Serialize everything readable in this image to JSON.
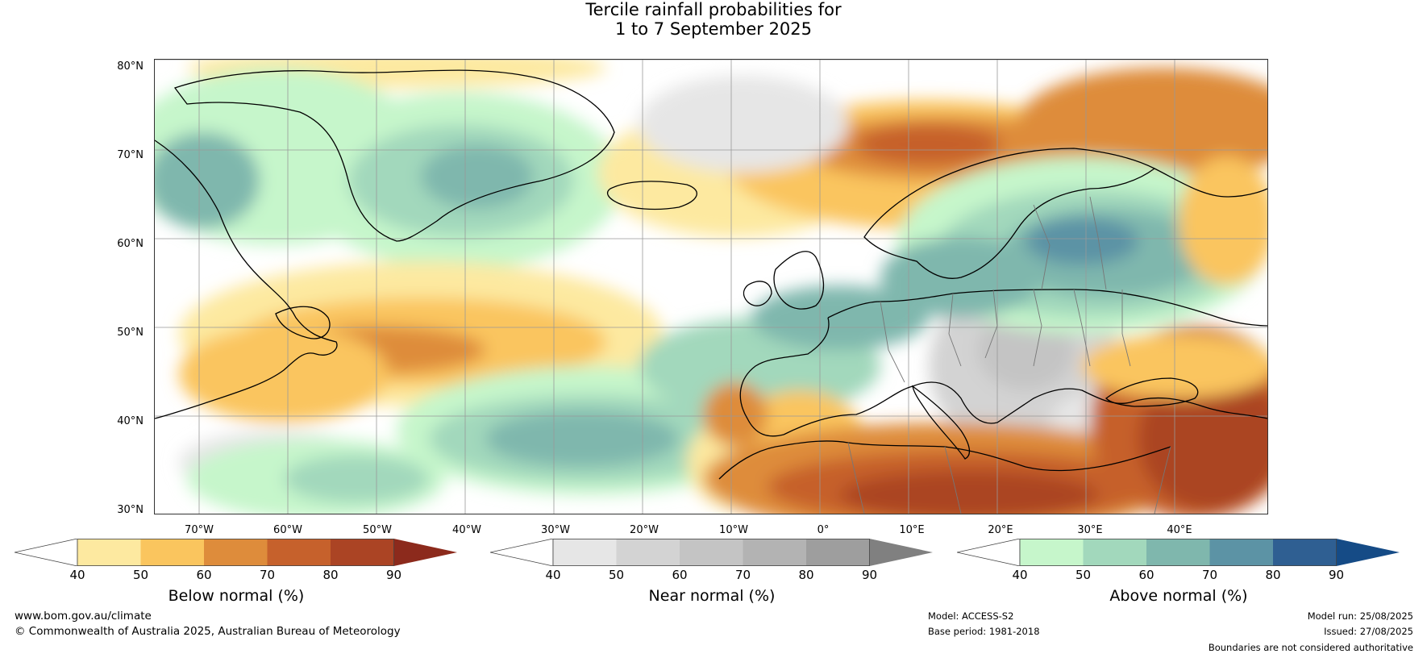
{
  "title": {
    "line1": "Tercile rainfall probabilities for",
    "line2": "1 to 7 September 2025"
  },
  "map": {
    "lat_labels": [
      "80°N",
      "70°N",
      "60°N",
      "50°N",
      "40°N",
      "30°N"
    ],
    "lon_labels": [
      "70°W",
      "60°W",
      "50°W",
      "40°W",
      "30°W",
      "20°W",
      "10°W",
      "0°",
      "10°E",
      "20°E",
      "30°E",
      "40°E"
    ]
  },
  "colorbars": [
    {
      "label": "Below normal (%)",
      "ticks": [
        "40",
        "50",
        "60",
        "70",
        "80",
        "90"
      ],
      "colors": [
        "#ffffff",
        "#fde9a0",
        "#fac55e",
        "#de8c3b",
        "#c6612c",
        "#ab4424",
        "#8c2a1c"
      ]
    },
    {
      "label": "Near normal (%)",
      "ticks": [
        "40",
        "50",
        "60",
        "70",
        "80",
        "90"
      ],
      "colors": [
        "#ffffff",
        "#e6e6e6",
        "#d3d3d3",
        "#c4c4c4",
        "#b3b3b3",
        "#9e9e9e",
        "#808080"
      ]
    },
    {
      "label": "Above normal (%)",
      "ticks": [
        "40",
        "50",
        "60",
        "70",
        "80",
        "90"
      ],
      "colors": [
        "#ffffff",
        "#c6f6cb",
        "#a2d8bc",
        "#7fb7ad",
        "#5c93a5",
        "#2f5f92",
        "#154b86"
      ]
    }
  ],
  "footer": {
    "website": "www.bom.gov.au/climate",
    "copyright": "© Commonwealth of Australia 2025, Australian Bureau of Meteorology",
    "model": "Model: ACCESS-S2",
    "base_period": "Base period: 1981-2018",
    "model_run": "Model run: 25/08/2025",
    "issued": "Issued: 27/08/2025",
    "disclaimer": "Boundaries are not considered authoritative"
  }
}
